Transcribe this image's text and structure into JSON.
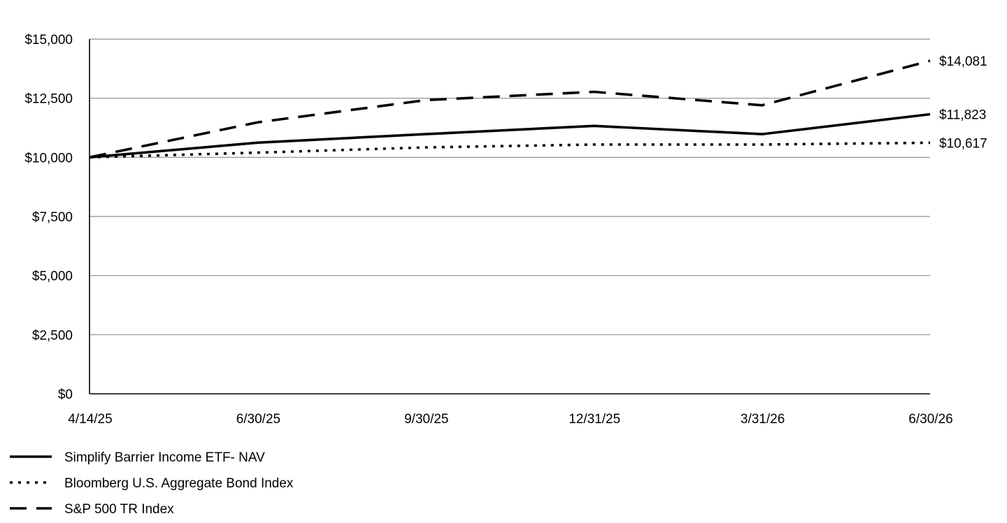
{
  "chart_data": {
    "type": "line",
    "title": "",
    "xlabel": "",
    "ylabel": "",
    "categories": [
      "4/14/25",
      "6/30/25",
      "9/30/25",
      "12/31/25",
      "3/31/26",
      "6/30/26"
    ],
    "ylim": [
      0,
      15000
    ],
    "yticks": [
      0,
      2500,
      5000,
      7500,
      10000,
      12500,
      15000
    ],
    "ytick_labels": [
      "$0",
      "$2,500",
      "$5,000",
      "$7,500",
      "$10,000",
      "$12,500",
      "$15,000"
    ],
    "grid": true,
    "legend_position": "bottom-left",
    "series": [
      {
        "name": "Simplify Barrier Income ETF- NAV",
        "style": "solid",
        "color": "#000000",
        "values": [
          10000,
          10620,
          10980,
          11330,
          10980,
          11823
        ],
        "end_label": "$11,823"
      },
      {
        "name": "Bloomberg U.S. Aggregate Bond Index",
        "style": "dotted",
        "color": "#000000",
        "values": [
          10000,
          10200,
          10420,
          10540,
          10540,
          10617
        ],
        "end_label": "$10,617"
      },
      {
        "name": "S&P 500 TR Index",
        "style": "dashed",
        "color": "#000000",
        "values": [
          10000,
          11480,
          12420,
          12770,
          12200,
          14081
        ],
        "end_label": "$14,081"
      }
    ]
  }
}
